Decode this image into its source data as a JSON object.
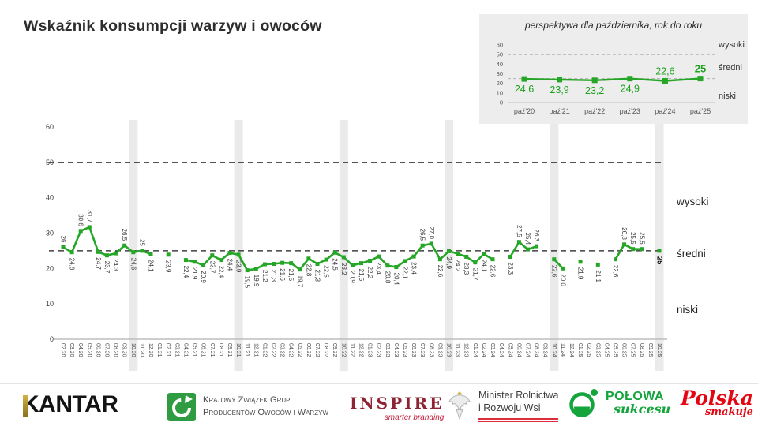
{
  "title": "Wskaźnik konsumpcji warzyw i owoców",
  "colors": {
    "line_green": "#26a626",
    "inset_label_green": "#1ea21e",
    "band_gray": "#eaeaea",
    "inset_bg": "#ededed"
  },
  "chart_data": [
    {
      "type": "line",
      "name": "main",
      "title": "Wskaźnik konsumpcji warzyw i owoców",
      "x": [
        "02.20",
        "03.20",
        "04.20",
        "05.20",
        "06.20",
        "07.20",
        "08.20",
        "09.20",
        "10.20",
        "11.20",
        "12.20",
        "01.21",
        "02.21",
        "03.21",
        "04.21",
        "05.21",
        "06.21",
        "07.21",
        "08.21",
        "09.21",
        "10.21",
        "11.21",
        "12.21",
        "01.22",
        "02.22",
        "03.22",
        "04.22",
        "05.22",
        "06.22",
        "07.22",
        "08.22",
        "09.22",
        "10.22",
        "11.22",
        "12.22",
        "01.23",
        "02.23",
        "03.23",
        "04.23",
        "05.23",
        "06.23",
        "07.23",
        "08.23",
        "09.23",
        "10.23",
        "11.23",
        "12.23",
        "01.24",
        "02.24",
        "03.24",
        "04.24",
        "05.24",
        "06.24",
        "07.24",
        "08.24",
        "09.24",
        "10.24",
        "11.24",
        "12.24",
        "01.25",
        "02.25",
        "03.25",
        "04.25",
        "05.25",
        "06.25",
        "07.25",
        "08.25",
        "09.25",
        "10.25"
      ],
      "values": [
        26,
        24.6,
        30.6,
        31.7,
        24.7,
        23.7,
        24.3,
        26.5,
        24.6,
        25,
        24.1,
        null,
        23.9,
        null,
        22.4,
        21.9,
        20.9,
        23.7,
        22.4,
        24.4,
        23.9,
        19.5,
        19.9,
        21.2,
        21.3,
        21.6,
        21.5,
        19.7,
        22.8,
        21.3,
        22.5,
        24.5,
        23.2,
        20.9,
        21.5,
        22.2,
        23.4,
        20.8,
        20.4,
        22.1,
        23.4,
        26.5,
        27.0,
        22.6,
        24.9,
        24.2,
        23.3,
        21.7,
        24.1,
        22.6,
        null,
        23.3,
        27.5,
        25.4,
        26.3,
        null,
        22.6,
        20.0,
        null,
        21.9,
        null,
        21.1,
        null,
        22.6,
        26.8,
        25.5,
        25.5,
        null,
        25
      ],
      "labels": [
        "26",
        "24,6",
        "30,6",
        "31,7",
        "24,7",
        "23,7",
        "24,3",
        "26,5",
        "24,6",
        "25",
        "24,1",
        null,
        "23,9",
        null,
        "22,4",
        "21,9",
        "20,9",
        "23,7",
        "22,4",
        "24,4",
        "23,9",
        "19,5",
        "19,9",
        "21,2",
        "21,3",
        "21,6",
        "21,5",
        "19,7",
        "22,8",
        "21,3",
        "22,5",
        "24,5",
        "23,2",
        "20,9",
        "21,5",
        "22,2",
        "23,4",
        "20,8",
        "20,4",
        "22,1",
        "23,4",
        "26,5",
        "27,0",
        "22,6",
        "24,9",
        "24,2",
        "23,3",
        "21,7",
        "24,1",
        "22,6",
        null,
        "23,3",
        "27,5",
        "25,4",
        "26,3",
        null,
        "22,6",
        "20,0",
        null,
        "21,9",
        null,
        "21,1",
        null,
        "22,6",
        "26,8",
        "25,5",
        "25,5",
        null,
        "25"
      ],
      "y_ticks": [
        0,
        10,
        20,
        30,
        40,
        50,
        60
      ],
      "ylim": [
        0,
        60
      ],
      "reference_lines": [
        25,
        50
      ],
      "zone_labels": [
        "wysoki",
        "średni",
        "niski"
      ],
      "highlight_months": [
        "10.20",
        "10.21",
        "10.22",
        "10.23",
        "10.24",
        "10.25"
      ],
      "legend_position": "none",
      "grid": "off"
    },
    {
      "type": "line",
      "name": "inset",
      "title": "perspektywa dla października, rok do roku",
      "x": [
        "paź'20",
        "paź'21",
        "paź'22",
        "paź'23",
        "paź'24",
        "paź'25"
      ],
      "values": [
        24.6,
        23.9,
        23.2,
        24.9,
        22.6,
        25
      ],
      "labels": [
        "24,6",
        "23,9",
        "23,2",
        "24,9",
        "22,6",
        "25"
      ],
      "label_above": [
        false,
        false,
        false,
        false,
        true,
        true
      ],
      "y_ticks": [
        0,
        10,
        20,
        30,
        40,
        50,
        60
      ],
      "ylim": [
        0,
        60
      ],
      "reference_lines": [
        25,
        50
      ],
      "zone_labels": [
        "wysoki",
        "średni",
        "niski"
      ],
      "grid": "off"
    }
  ],
  "footer": {
    "kantar": {
      "text": "KANTAR"
    },
    "kzg": {
      "line1": "Krajowy Związek Grup",
      "line2": "Producentów Owoców i Warzyw"
    },
    "inspire": {
      "text": "INSPIRE",
      "tagline": "smarter branding"
    },
    "ministry": {
      "line1": "Minister Rolnictwa",
      "line2": "i Rozwoju Wsi"
    },
    "polowa": {
      "text": "POŁOWA",
      "tagline": "sukcesu"
    },
    "polska": {
      "text": "Polska",
      "tagline": "smakuje"
    }
  }
}
